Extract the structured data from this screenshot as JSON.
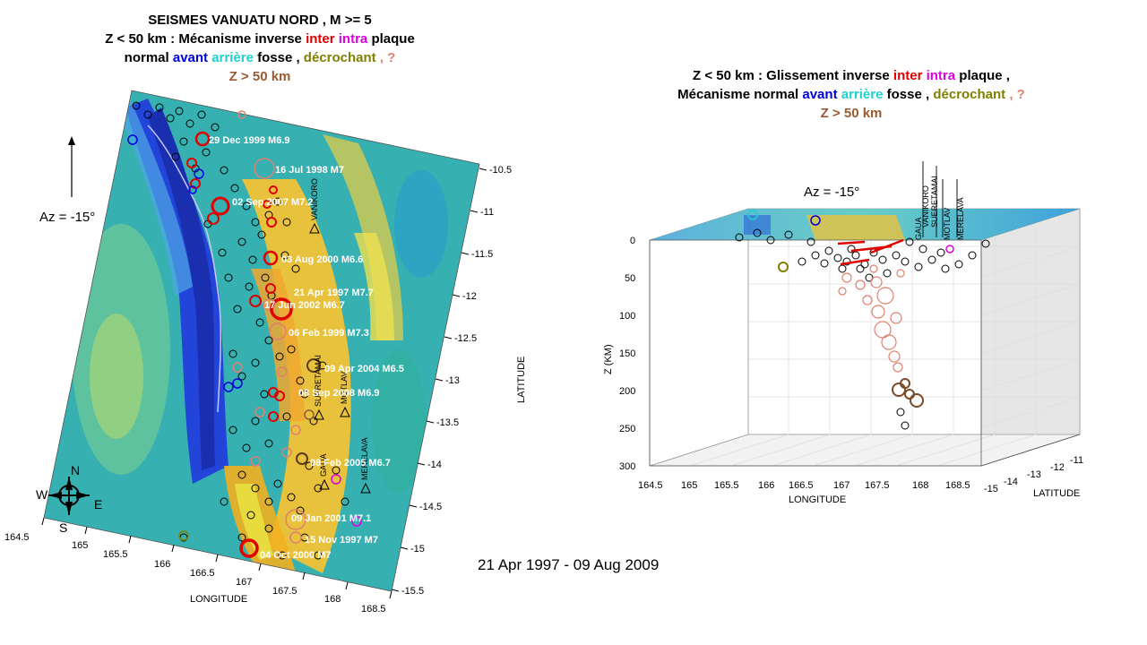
{
  "left_title": {
    "line1": "SEISMES VANUATU  NORD ,  M >=  5",
    "line2_prefix": "Z < 50 km : Mécanisme inverse ",
    "inter": "inter",
    "intra": "intra",
    "line2_suffix": " plaque",
    "normal": "normal ",
    "avant": "avant",
    "arriere": "arrière",
    "fosse": " fosse ,",
    "decrochant": "décrochant",
    "question": " , ?",
    "z50": "Z > 50 km"
  },
  "right_title": {
    "line1_prefix": "Z < 50 km :  Glissement inverse ",
    "inter": "inter",
    "intra": "intra",
    "line1_suffix": " plaque ,",
    "line2_prefix": "Mécanisme normal  ",
    "avant": "avant",
    "arriere": "arrière",
    "fosse": "  fosse ,",
    "decrochant": "décrochant",
    "question": " , ?",
    "z50": "Z > 50 km"
  },
  "map": {
    "azimuth": "Az =  -15°",
    "compass": {
      "n": "N",
      "s": "S",
      "e": "E",
      "w": "W"
    },
    "xlabel": "LONGITUDE",
    "ylabel": "LATITUDE",
    "lon_ticks": [
      "164.5",
      "165",
      "165.5",
      "166",
      "166.5",
      "167",
      "167.5",
      "168",
      "168.5"
    ],
    "lat_ticks": [
      "-10.5",
      "-11",
      "-11.5",
      "-12",
      "-12.5",
      "-13",
      "-13.5",
      "-14",
      "-14.5",
      "-15",
      "-15.5"
    ],
    "events": [
      "29 Dec 1999 M6.9",
      "16 Jul 1998 M7",
      "02 Sep 2007 M7.2",
      "03 Aug 2000 M6.6",
      "21 Apr 1997 M7.7",
      "17 Jun 2002 M6.7",
      "06 Feb 1999 M7.3",
      "09 Apr 2004 M6.5",
      "08 Sep 2008 M6.9",
      "08 Feb 2005 M6.7",
      "09 Jan 2001 M7.1",
      "15 Nov 1997 M7",
      "04 Oct 2000 M7"
    ],
    "volcanoes": [
      "VANIKORO",
      "SUERETAMAI",
      "MOTLAV",
      "GAUA",
      "MERELAVA"
    ]
  },
  "plot3d": {
    "azimuth": "Az =  -15°",
    "zlabel": "Z (KM)",
    "xlabel": "LONGITUDE",
    "ylabel": "LATITUDE",
    "z_ticks": [
      "0",
      "50",
      "100",
      "150",
      "200",
      "250",
      "300"
    ],
    "lon_ticks": [
      "164.5",
      "165",
      "165.5",
      "166",
      "166.5",
      "167",
      "167.5",
      "168",
      "168.5"
    ],
    "lat_ticks": [
      "-15",
      "-14",
      "-13",
      "-12",
      "-11"
    ],
    "volcanoes": [
      "VANIKORO",
      "SUERETAMAI",
      "MOTLAV",
      "MERELAVA",
      "GAUA"
    ]
  },
  "date_range": "21 Apr 1997 - 09 Aug 2009",
  "colors": {
    "inter": "#e00000",
    "intra": "#e000e0",
    "avant": "#0000e0",
    "arriere": "#20d0d0",
    "decrochant": "#808000",
    "unknown": "#e08070",
    "deep": "#9a5a32"
  }
}
